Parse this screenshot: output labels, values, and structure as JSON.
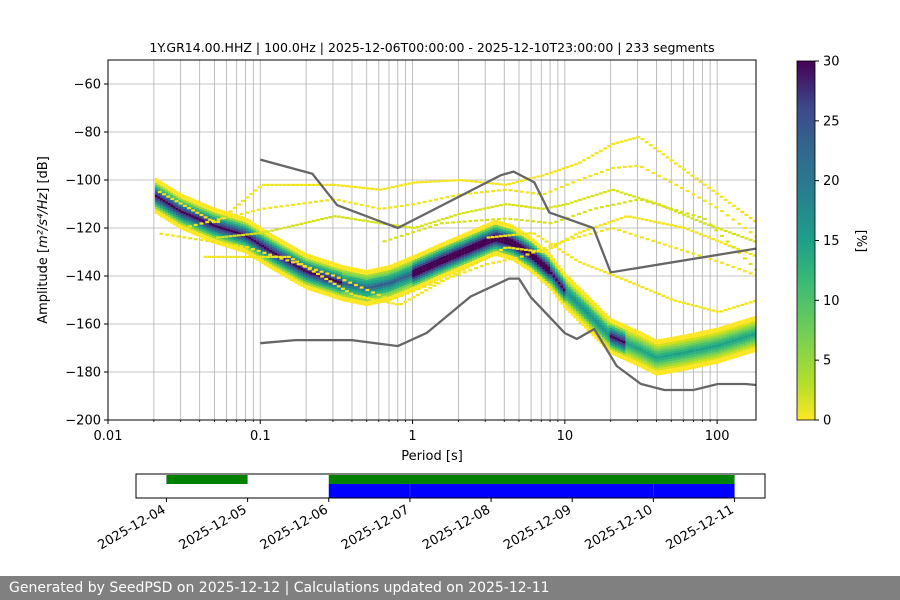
{
  "footer": "Generated by SeedPSD on 2025-12-12 | Calculations updated on 2025-12-11",
  "chart_data": [
    {
      "type": "heatmap",
      "title": "1Y.GR14.00.HHZ | 100.0Hz | 2025-12-06T00:00:00 - 2025-12-10T23:00:00 | 233 segments",
      "xlabel": "Period [s]",
      "ylabel_prefix": "Amplitude [",
      "ylabel_math": "m²/s⁴/Hz",
      "ylabel_suffix": "] [dB]",
      "xscale": "log",
      "xlim": [
        0.01,
        180
      ],
      "ylim": [
        -200,
        -50
      ],
      "xticks": [
        {
          "value": 0.01,
          "label": "0.01"
        },
        {
          "value": 0.1,
          "label": "0.1"
        },
        {
          "value": 1,
          "label": "1"
        },
        {
          "value": 10,
          "label": "10"
        },
        {
          "value": 100,
          "label": "100"
        }
      ],
      "yticks": [
        -60,
        -80,
        -100,
        -120,
        -140,
        -160,
        -180,
        -200
      ],
      "grid": true,
      "colorbar": {
        "label": "[%]",
        "range": [
          0,
          30
        ],
        "ticks": [
          0,
          5,
          10,
          15,
          20,
          25,
          30
        ],
        "colormap": "viridis_r"
      },
      "main_curve": {
        "period": [
          0.02,
          0.03,
          0.05,
          0.08,
          0.12,
          0.2,
          0.35,
          0.5,
          0.7,
          1.0,
          1.5,
          2.5,
          3.5,
          4.5,
          6,
          8,
          10,
          15,
          20,
          30,
          40,
          60,
          100,
          180
        ],
        "db": [
          -106,
          -113,
          -119,
          -123,
          -130,
          -138,
          -143,
          -145,
          -143,
          -139,
          -134,
          -128,
          -124,
          -126,
          -131,
          -138,
          -146,
          -157,
          -165,
          -170,
          -174,
          -172,
          -169,
          -164
        ]
      },
      "band_halfwidth_db": 8,
      "scatter_traces": [
        {
          "period": [
            0.02,
            0.05,
            0.1,
            0.3,
            0.6,
            1.0,
            2.0,
            4.0,
            7.0,
            12.0,
            20.0,
            30.0,
            60.0,
            180.0
          ],
          "db": [
            -104,
            -118,
            -102,
            -102,
            -104,
            -101,
            -100,
            -102,
            -98,
            -93,
            -85,
            -82,
            -96,
            -118
          ]
        },
        {
          "period": [
            0.03,
            0.1,
            0.3,
            0.6,
            1.0,
            2.0,
            4.0,
            7.0,
            12.0,
            20.0,
            30.0,
            60.0,
            100.0,
            180.0
          ],
          "db": [
            -120,
            -112,
            -108,
            -112,
            -110,
            -106,
            -104,
            -106,
            -100,
            -95,
            -94,
            -104,
            -112,
            -124
          ]
        },
        {
          "period": [
            0.05,
            0.1,
            0.3,
            0.6,
            1.0,
            2.0,
            4.0,
            7.0,
            10.0,
            20.0,
            40.0,
            80.0,
            180.0
          ],
          "db": [
            -124,
            -122,
            -115,
            -118,
            -120,
            -114,
            -110,
            -112,
            -110,
            -104,
            -110,
            -118,
            -126
          ]
        },
        {
          "period": [
            0.02,
            0.08,
            0.3,
            0.7,
            1.0,
            3.0,
            5.0,
            10.0,
            20.0,
            50.0,
            100.0,
            180.0
          ],
          "db": [
            -122,
            -128,
            -140,
            -150,
            -146,
            -135,
            -132,
            -125,
            -120,
            -128,
            -134,
            -140
          ]
        },
        {
          "period": [
            0.04,
            0.15,
            0.4,
            0.8,
            2.0,
            4.0,
            7.0,
            12.0,
            25.0,
            60.0,
            180.0
          ],
          "db": [
            -132,
            -132,
            -148,
            -152,
            -138,
            -128,
            -130,
            -122,
            -115,
            -120,
            -132
          ]
        },
        {
          "period": [
            0.6,
            1.5,
            4.0,
            8.0,
            15.0,
            30.0,
            80.0,
            180.0
          ],
          "db": [
            -126,
            -118,
            -116,
            -118,
            -112,
            -108,
            -116,
            -138
          ]
        },
        {
          "period": [
            3.0,
            6.0,
            12.0,
            25.0,
            50.0,
            100.0,
            180.0
          ],
          "db": [
            -124,
            -122,
            -134,
            -142,
            -150,
            -155,
            -150
          ]
        }
      ],
      "nlnm": {
        "period": [
          0.1,
          0.17,
          0.4,
          0.8,
          1.24,
          2.4,
          4.3,
          5.0,
          6.0,
          10.0,
          12.0,
          15.6,
          21.9,
          31.6,
          45.0,
          70.0,
          101.0,
          154.0,
          180.0
        ],
        "db": [
          -168,
          -166.7,
          -166.7,
          -169.2,
          -163.7,
          -148.6,
          -141.1,
          -141.1,
          -149.0,
          -163.8,
          -166.2,
          -162.1,
          -177.5,
          -185.0,
          -187.5,
          -187.5,
          -185.0,
          -185.0,
          -185.4
        ]
      },
      "nhnm": {
        "period": [
          0.1,
          0.22,
          0.32,
          0.8,
          3.8,
          4.6,
          6.3,
          7.9,
          15.4,
          20.0,
          180.0
        ],
        "db": [
          -91.5,
          -97.4,
          -110.5,
          -120.0,
          -98.0,
          -96.5,
          -101.0,
          -113.5,
          -120.0,
          -138.5,
          -128.6
        ]
      }
    },
    {
      "type": "bar",
      "role": "data-availability timeline",
      "xticks": [
        "2025-12-04",
        "2025-12-05",
        "2025-12-06",
        "2025-12-07",
        "2025-12-08",
        "2025-12-09",
        "2025-12-10",
        "2025-12-11"
      ],
      "xlim": [
        "2025-12-03T15:00",
        "2025-12-11T09:00"
      ],
      "series": [
        {
          "color": "#008000",
          "row": "top",
          "intervals": [
            [
              "2025-12-04T00:00",
              "2025-12-05T00:00"
            ],
            [
              "2025-12-06T00:00",
              "2025-12-11T00:00"
            ]
          ]
        },
        {
          "color": "#0000ff",
          "row": "bottom",
          "intervals": [
            [
              "2025-12-06T00:00",
              "2025-12-07T00:00"
            ],
            [
              "2025-12-07T00:03",
              "2025-12-10T00:00"
            ],
            [
              "2025-12-10T00:03",
              "2025-12-11T00:00"
            ]
          ]
        }
      ]
    }
  ]
}
